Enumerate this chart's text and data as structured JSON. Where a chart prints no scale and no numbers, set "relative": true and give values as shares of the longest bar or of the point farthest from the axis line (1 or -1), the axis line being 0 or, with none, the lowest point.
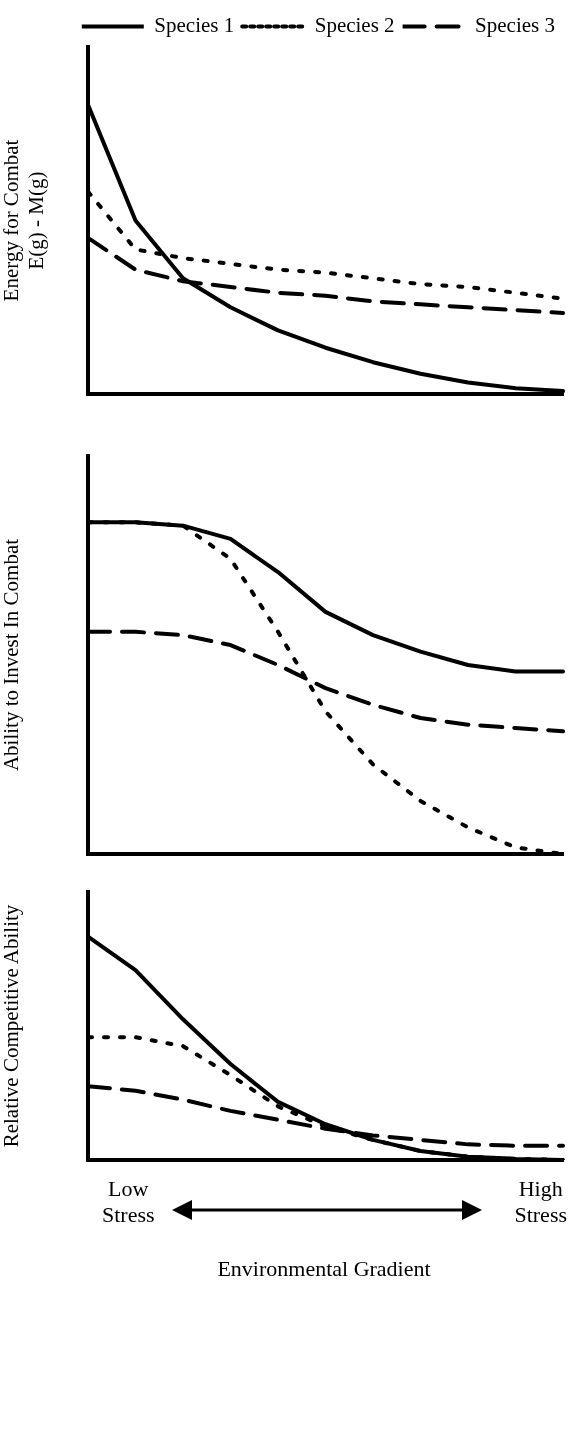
{
  "chart_data": [
    {
      "type": "line",
      "relative": true,
      "ylabel": "Energy for Combat\nE(g) - M(g)",
      "legend": "top right",
      "categories": [
        null,
        null,
        null,
        null,
        null,
        null,
        null,
        null,
        null,
        null,
        null
      ],
      "series": [
        {
          "name": "Species 1",
          "color": "#000000",
          "line_style": "solid",
          "values": [
            1,
            0.6,
            0.4,
            0.3,
            0.22,
            0.16,
            0.11,
            0.07,
            0.04,
            0.02,
            0.01
          ]
        },
        {
          "name": "Species 2",
          "color": "#000000",
          "line_style": "dotted",
          "values": [
            0.7,
            0.5,
            0.47,
            0.45,
            0.43,
            0.42,
            0.4,
            0.38,
            0.37,
            0.35,
            0.33
          ]
        },
        {
          "name": "Species 3",
          "color": "#000000",
          "line_style": "dashed",
          "values": [
            0.54,
            0.43,
            0.39,
            0.37,
            0.35,
            0.34,
            0.32,
            0.31,
            0.3,
            0.29,
            0.28
          ]
        }
      ]
    },
    {
      "type": "line",
      "relative": true,
      "ylabel": "Ability to Invest In Combat",
      "categories": [
        null,
        null,
        null,
        null,
        null,
        null,
        null,
        null,
        null,
        null,
        null
      ],
      "series": [
        {
          "color": "#000000",
          "line_style": "solid",
          "values": [
            1,
            1,
            0.99,
            0.95,
            0.85,
            0.73,
            0.66,
            0.61,
            0.57,
            0.55,
            0.55
          ]
        },
        {
          "color": "#000000",
          "line_style": "dotted",
          "values": [
            1,
            1,
            0.99,
            0.89,
            0.67,
            0.43,
            0.27,
            0.16,
            0.08,
            0.02,
            0
          ]
        },
        {
          "color": "#000000",
          "line_style": "dashed",
          "values": [
            0.67,
            0.67,
            0.66,
            0.63,
            0.57,
            0.5,
            0.45,
            0.41,
            0.39,
            0.38,
            0.37
          ]
        }
      ]
    },
    {
      "type": "line",
      "relative": true,
      "ylabel": "Relative Competitive Ability",
      "xlabel": "Environmental Gradient",
      "annotations": [
        "Low\nStress",
        "High\nStress"
      ],
      "categories": [
        null,
        null,
        null,
        null,
        null,
        null,
        null,
        null,
        null,
        null,
        null
      ],
      "series": [
        {
          "color": "#000000",
          "line_style": "solid",
          "values": [
            1,
            0.85,
            0.63,
            0.43,
            0.26,
            0.16,
            0.09,
            0.04,
            0.015,
            0.005,
            0
          ]
        },
        {
          "color": "#000000",
          "line_style": "dotted",
          "values": [
            0.55,
            0.55,
            0.51,
            0.38,
            0.24,
            0.15,
            0.09,
            0.04,
            0.015,
            0.005,
            0
          ]
        },
        {
          "color": "#000000",
          "line_style": "dashed",
          "values": [
            0.33,
            0.31,
            0.27,
            0.22,
            0.18,
            0.14,
            0.11,
            0.09,
            0.07,
            0.064,
            0.064
          ]
        }
      ]
    }
  ]
}
